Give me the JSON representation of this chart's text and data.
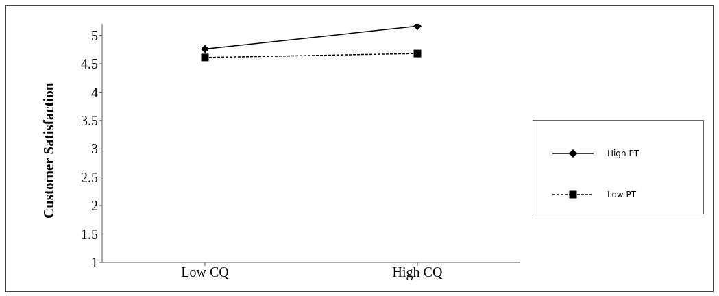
{
  "chart_data": {
    "type": "line",
    "ylabel": "Customer Satisfaction",
    "categories": [
      "Low CQ",
      "High CQ"
    ],
    "series": [
      {
        "name": "High PT",
        "color": "#000000",
        "values": [
          4.76,
          5.16
        ],
        "marker": "diamond",
        "line_style": "solid"
      },
      {
        "name": "Low PT",
        "color": "#000000",
        "values": [
          4.61,
          4.68
        ],
        "marker": "square",
        "line_style": "dashed"
      }
    ],
    "ylim": [
      1,
      5.2
    ],
    "yticks": [
      1,
      1.5,
      2,
      2.5,
      3,
      3.5,
      4,
      4.5,
      5
    ],
    "grid": false,
    "legend": "right"
  }
}
